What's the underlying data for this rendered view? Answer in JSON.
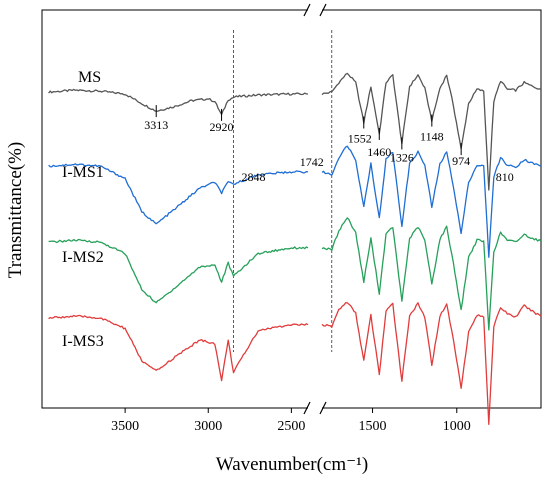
{
  "chart_data": {
    "type": "line",
    "title": "",
    "xlabel": "Wavenumber(cm⁻¹)",
    "ylabel": "Transmittance(%)",
    "x_direction": "descending",
    "x_break": [
      2400,
      1800
    ],
    "x_segments": [
      [
        4000,
        2400
      ],
      [
        1800,
        500
      ]
    ],
    "xticks": [
      3500,
      3000,
      2500,
      1500,
      1000
    ],
    "xtick_labels": [
      "3500",
      "3000",
      "2500",
      "1500",
      "1000"
    ],
    "yticks_shown": false,
    "grid": false,
    "series": [
      {
        "name": "MS",
        "color": "#555555",
        "base": 50,
        "x": [
          3960,
          3800,
          3650,
          3500,
          3400,
          3313,
          3200,
          3100,
          3000,
          2960,
          2920,
          2880,
          2840,
          2700,
          2500,
          2400,
          1800,
          1742,
          1700,
          1650,
          1600,
          1552,
          1510,
          1460,
          1420,
          1380,
          1326,
          1280,
          1230,
          1190,
          1148,
          1100,
          1060,
          1020,
          974,
          930,
          880,
          840,
          810,
          780,
          740,
          700,
          650,
          600,
          550,
          500
        ],
        "y": [
          2,
          4,
          3,
          0,
          -10,
          -18,
          -13,
          -7,
          -5,
          -8,
          -22,
          -6,
          -3,
          -1,
          0,
          0,
          0,
          2,
          12,
          22,
          12,
          -30,
          8,
          -42,
          12,
          20,
          -52,
          8,
          20,
          6,
          -28,
          6,
          20,
          -12,
          -58,
          -10,
          5,
          3,
          -100,
          -8,
          14,
          5,
          4,
          12,
          8,
          5
        ],
        "marker_labels": [
          {
            "text": "3313",
            "x": 3313
          },
          {
            "text": "2920",
            "x": 2920
          },
          {
            "text": "1552",
            "x": 1552
          },
          {
            "text": "1460",
            "x": 1460
          },
          {
            "text": "1326",
            "x": 1326
          },
          {
            "text": "1148",
            "x": 1148
          },
          {
            "text": "974",
            "x": 974
          },
          {
            "text": "810",
            "x": 810
          }
        ]
      },
      {
        "name": "I-MS1",
        "color": "#1f6ed4",
        "base": 125,
        "x": [
          3960,
          3800,
          3650,
          3500,
          3400,
          3313,
          3200,
          3050,
          2960,
          2920,
          2880,
          2848,
          2700,
          2500,
          2400,
          1800,
          1742,
          1700,
          1650,
          1600,
          1552,
          1510,
          1460,
          1420,
          1380,
          1326,
          1280,
          1230,
          1190,
          1148,
          1100,
          1060,
          1020,
          974,
          930,
          880,
          840,
          810,
          780,
          740,
          700,
          650,
          600,
          550,
          500
        ],
        "y": [
          3,
          5,
          3,
          -10,
          -45,
          -58,
          -42,
          -20,
          -14,
          -25,
          -14,
          -16,
          -6,
          -3,
          -3,
          -3,
          -6,
          12,
          25,
          10,
          -40,
          6,
          -52,
          10,
          18,
          -60,
          6,
          18,
          4,
          -40,
          5,
          18,
          -18,
          -68,
          -14,
          4,
          3,
          -92,
          -8,
          12,
          4,
          2,
          10,
          6,
          3
        ]
      },
      {
        "name": "I-MS2",
        "color": "#26a05a",
        "base": 200,
        "x": [
          3960,
          3800,
          3650,
          3500,
          3400,
          3313,
          3200,
          3050,
          2960,
          2920,
          2880,
          2848,
          2700,
          2500,
          2400,
          1800,
          1742,
          1700,
          1650,
          1600,
          1552,
          1510,
          1460,
          1420,
          1380,
          1326,
          1280,
          1230,
          1190,
          1148,
          1100,
          1060,
          1020,
          974,
          930,
          880,
          840,
          810,
          780,
          740,
          700,
          650,
          600,
          550,
          500
        ],
        "y": [
          2,
          4,
          2,
          -10,
          -48,
          -62,
          -46,
          -24,
          -22,
          -40,
          -20,
          -34,
          -10,
          -4,
          -4,
          -4,
          -6,
          14,
          28,
          12,
          -40,
          6,
          -52,
          10,
          18,
          -60,
          6,
          18,
          4,
          -42,
          5,
          18,
          -20,
          -70,
          -14,
          4,
          3,
          -90,
          -8,
          12,
          4,
          2,
          10,
          6,
          3
        ]
      },
      {
        "name": "I-MS3",
        "color": "#e03c3c",
        "base": 275,
        "x": [
          3960,
          3800,
          3650,
          3500,
          3400,
          3313,
          3200,
          3050,
          2960,
          2920,
          2880,
          2848,
          2700,
          2500,
          2400,
          1800,
          1742,
          1700,
          1650,
          1600,
          1552,
          1510,
          1460,
          1420,
          1380,
          1326,
          1280,
          1230,
          1190,
          1148,
          1100,
          1060,
          1020,
          974,
          930,
          880,
          840,
          810,
          780,
          740,
          700,
          650,
          600,
          550,
          500
        ],
        "y": [
          1,
          3,
          1,
          -10,
          -44,
          -55,
          -40,
          -22,
          -26,
          -65,
          -22,
          -56,
          -12,
          -6,
          -6,
          -6,
          -8,
          10,
          18,
          6,
          -44,
          4,
          -58,
          8,
          16,
          -65,
          4,
          16,
          2,
          -48,
          3,
          16,
          -22,
          -72,
          -14,
          4,
          2,
          -110,
          -8,
          12,
          6,
          2,
          14,
          8,
          3
        ]
      }
    ],
    "reference_lines": [
      {
        "x": 2848,
        "label": "2848"
      },
      {
        "x": 1742,
        "label": "1742"
      }
    ]
  }
}
